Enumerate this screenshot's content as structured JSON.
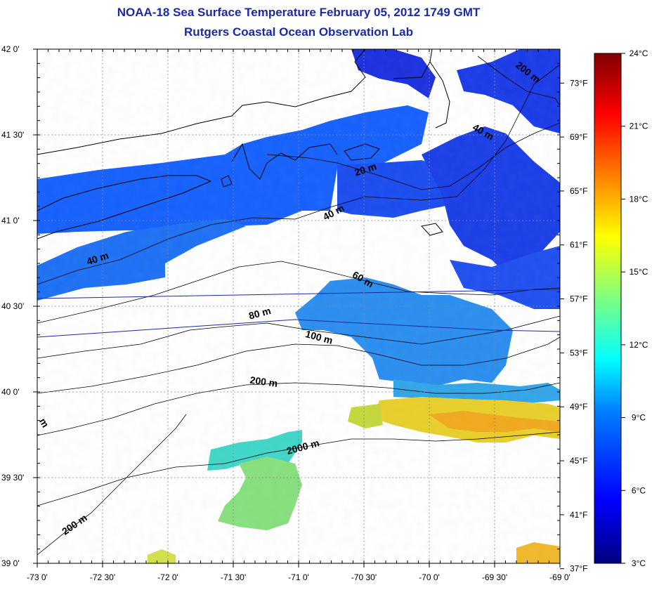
{
  "title": {
    "line1": "NOAA-18 Sea Surface Temperature February 05, 2012 1749 GMT",
    "line2": "Rutgers Coastal Ocean Observation Lab"
  },
  "map": {
    "lon_range": [
      -73.0,
      -69.0
    ],
    "lat_range": [
      39.0,
      42.0
    ],
    "lon_ticks": [
      "-73 0'",
      "-72 30'",
      "-72 0'",
      "-71 30'",
      "-71 0'",
      "-70 30'",
      "-70 0'",
      "-69 30'",
      "-69 0'"
    ],
    "lat_ticks": [
      "39 0'",
      "39 30'",
      "40 0'",
      "40 30'",
      "41 0'",
      "41 30'",
      "42 0'"
    ],
    "fahrenheit_ticks": [
      "37°F",
      "41°F",
      "45°F",
      "49°F",
      "53°F",
      "57°F",
      "61°F",
      "65°F",
      "69°F",
      "73°F"
    ],
    "grid": true
  },
  "colorbar": {
    "ticks": [
      "3°C",
      "6°C",
      "9°C",
      "12°C",
      "15°C",
      "18°C",
      "21°C",
      "24°C"
    ],
    "range_c": [
      3,
      24
    ]
  },
  "contour_labels": [
    {
      "text": "20 m",
      "lon": -70.48,
      "lat": 41.28
    },
    {
      "text": "40 m",
      "lon": -70.72,
      "lat": 41.03
    },
    {
      "text": "40 m",
      "lon": -72.53,
      "lat": 40.76
    },
    {
      "text": "40 m",
      "lon": -69.6,
      "lat": 41.5
    },
    {
      "text": "200 m",
      "lon": -69.26,
      "lat": 41.85
    },
    {
      "text": "60 m",
      "lon": -70.52,
      "lat": 40.64
    },
    {
      "text": "80 m",
      "lon": -71.29,
      "lat": 40.44
    },
    {
      "text": "100 m",
      "lon": -70.85,
      "lat": 40.3
    },
    {
      "text": "200 m",
      "lon": -71.27,
      "lat": 40.04
    },
    {
      "text": "2000 m",
      "lon": -70.96,
      "lat": 39.66
    },
    {
      "text": "200 m",
      "lon": -72.7,
      "lat": 39.21
    },
    {
      "text": "m",
      "lon": -72.97,
      "lat": 39.81
    }
  ],
  "colors": {
    "title": "#1a2aa6",
    "colorbar_stops": [
      "#00007f",
      "#0000ff",
      "#007fff",
      "#00ffff",
      "#7fff7f",
      "#ffff00",
      "#ff7f00",
      "#ff0000",
      "#7f0000"
    ]
  }
}
